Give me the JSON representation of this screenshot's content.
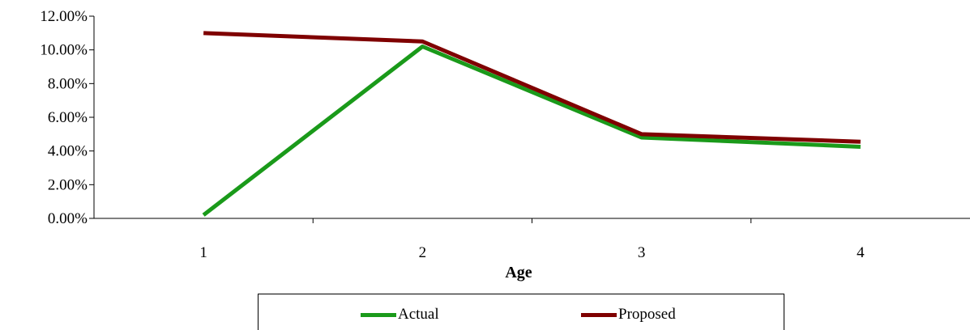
{
  "chart_data": {
    "type": "line",
    "title": "",
    "xlabel": "Age",
    "ylabel": "",
    "categories": [
      "1",
      "2",
      "3",
      "4"
    ],
    "ylim": [
      0,
      0.12
    ],
    "yticks": [
      "0.00%",
      "2.00%",
      "4.00%",
      "6.00%",
      "8.00%",
      "10.00%",
      "12.00%"
    ],
    "grid": false,
    "legend_position": "bottom",
    "series": [
      {
        "name": "Actual",
        "color": "#1a9a1a",
        "values": [
          0.002,
          0.102,
          0.048,
          0.0425
        ]
      },
      {
        "name": "Proposed",
        "color": "#7f0000",
        "values": [
          0.11,
          0.105,
          0.05,
          0.0455
        ]
      }
    ]
  }
}
